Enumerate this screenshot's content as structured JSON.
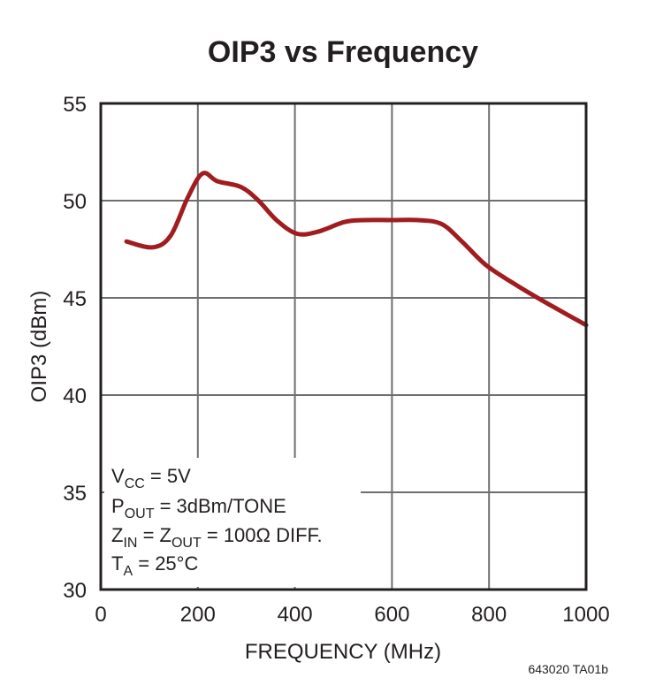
{
  "chart_data": {
    "type": "line",
    "title": "OIP3 vs Frequency",
    "xlabel": "FREQUENCY (MHz)",
    "ylabel": "OIP3 (dBm)",
    "xlim": [
      0,
      1000
    ],
    "ylim": [
      30,
      55
    ],
    "xticks": [
      0,
      200,
      400,
      600,
      800,
      1000
    ],
    "yticks": [
      30,
      35,
      40,
      45,
      50,
      55
    ],
    "grid": true,
    "line_color": "#a01c1f",
    "series": [
      {
        "x": [
          53,
          107,
          144,
          180,
          210,
          240,
          289,
          325,
          362,
          404,
          447,
          502,
          544,
          598,
          653,
          702,
          744,
          793,
          847,
          907,
          1000
        ],
        "y": [
          47.9,
          47.6,
          48.2,
          50.2,
          51.4,
          51.0,
          50.7,
          50.0,
          49.0,
          48.3,
          48.4,
          48.9,
          49.0,
          49.0,
          49.0,
          48.8,
          47.9,
          46.7,
          45.8,
          44.9,
          43.6
        ]
      }
    ],
    "annotations": [
      {
        "main": "V",
        "sub": "CC",
        "rest": " = 5V"
      },
      {
        "main": "P",
        "sub": "OUT",
        "rest": " = 3dBm/TONE"
      },
      {
        "main": "Z",
        "sub": "IN",
        "mid": " = Z",
        "sub2": "OUT",
        "rest": " = 100Ω DIFF."
      },
      {
        "main": "T",
        "sub": "A",
        "rest": " = 25°C"
      }
    ],
    "footnote": "643020 TA01b"
  }
}
